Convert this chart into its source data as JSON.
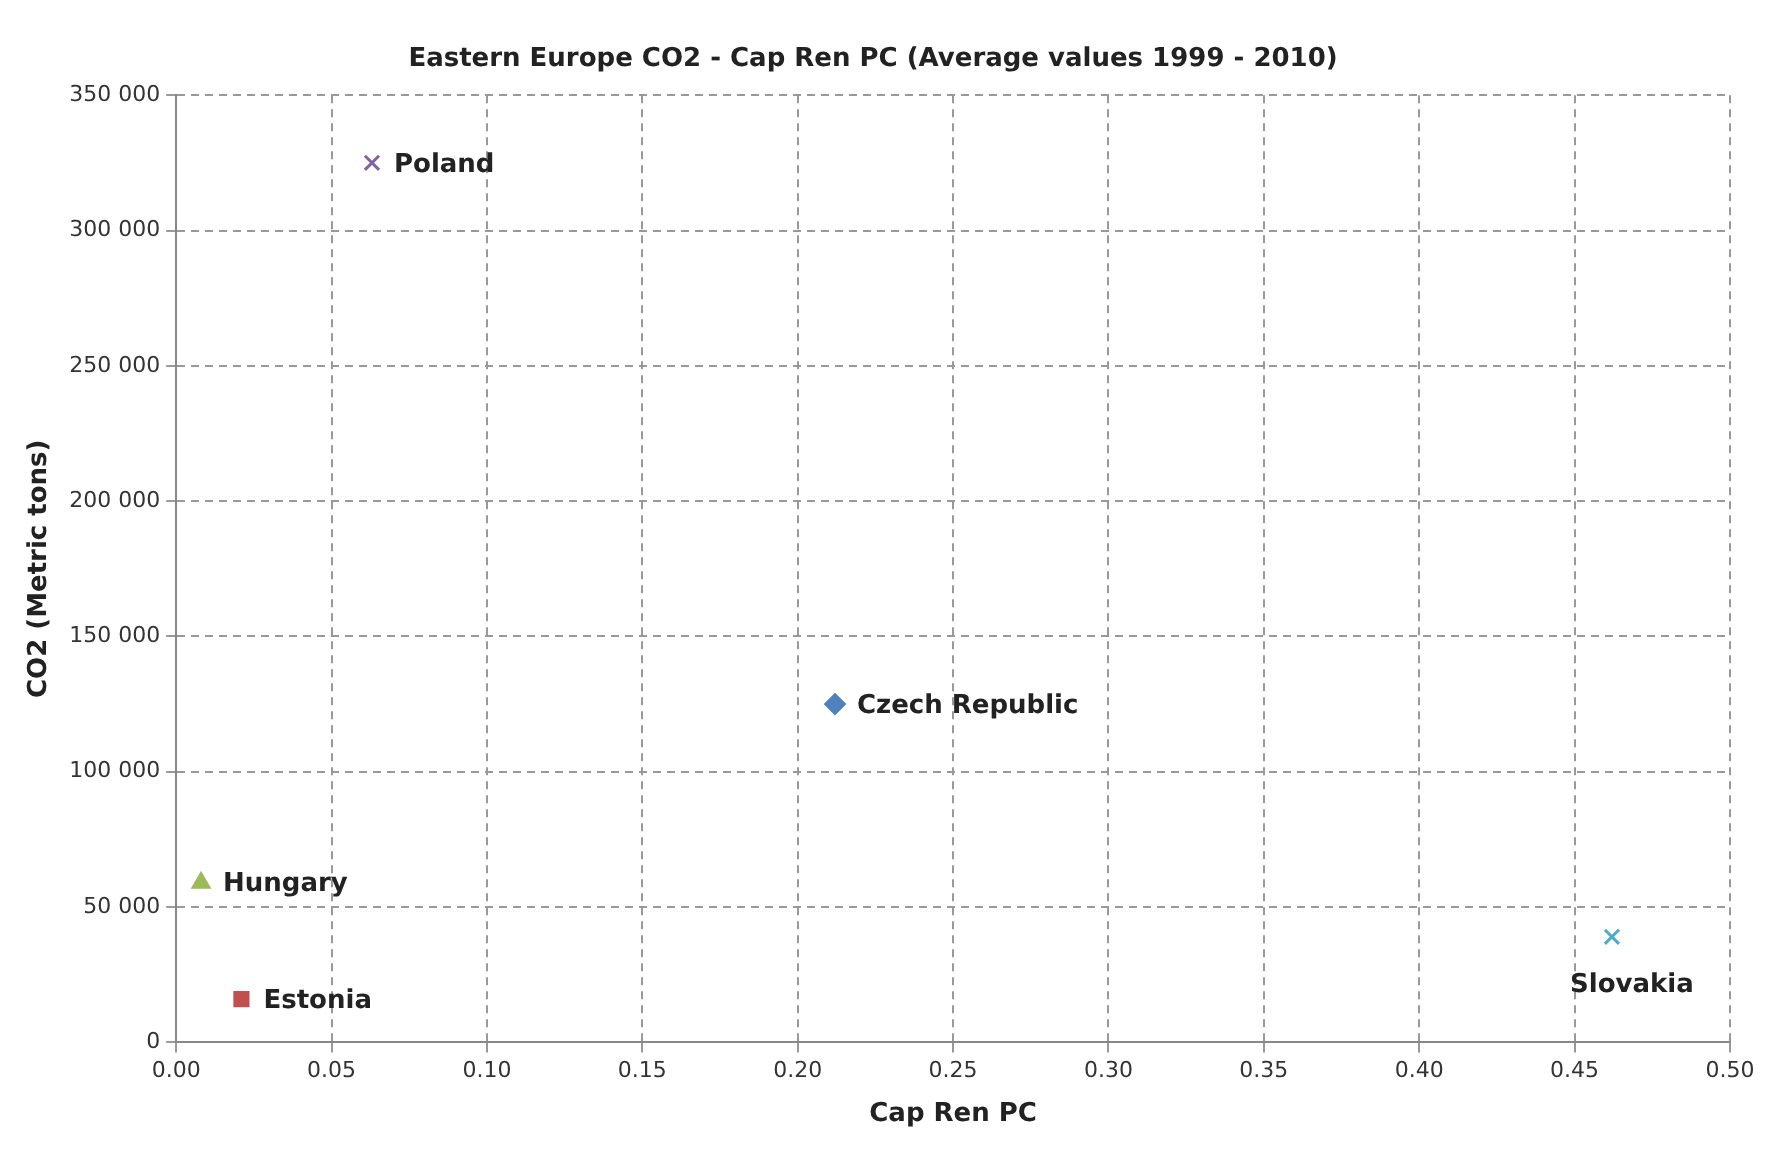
{
  "chart_data": {
    "type": "scatter",
    "title": "Eastern Europe CO2 - Cap Ren PC (Average values 1999 - 2010)",
    "xlabel": "Cap Ren PC",
    "ylabel": "CO2 (Metric tons)",
    "series": [
      {
        "name": "Poland",
        "color": "#8064a2",
        "marker": "cross",
        "x": [
          0.063
        ],
        "values": [
          325000
        ]
      },
      {
        "name": "Czech Republic",
        "color": "#4f81bd",
        "marker": "diamond",
        "x": [
          0.212
        ],
        "values": [
          125000
        ]
      },
      {
        "name": "Hungary",
        "color": "#9bbb59",
        "marker": "triangle",
        "x": [
          0.008
        ],
        "values": [
          59000
        ]
      },
      {
        "name": "Estonia",
        "color": "#c0504d",
        "marker": "square",
        "x": [
          0.021
        ],
        "values": [
          16000
        ]
      },
      {
        "name": "Slovakia",
        "color": "#4bacc6",
        "marker": "cross",
        "x": [
          0.462
        ],
        "values": [
          39000
        ]
      }
    ],
    "xlim": [
      0,
      0.5
    ],
    "ylim": [
      0,
      350000
    ],
    "xticks": [
      {
        "value": 0,
        "label": "0.00"
      },
      {
        "value": 0.05,
        "label": "0.05"
      },
      {
        "value": 0.1,
        "label": "0.10"
      },
      {
        "value": 0.15,
        "label": "0.15"
      },
      {
        "value": 0.2,
        "label": "0.20"
      },
      {
        "value": 0.25,
        "label": "0.25"
      },
      {
        "value": 0.3,
        "label": "0.30"
      },
      {
        "value": 0.35,
        "label": "0.35"
      },
      {
        "value": 0.4,
        "label": "0.40"
      },
      {
        "value": 0.45,
        "label": "0.45"
      },
      {
        "value": 0.5,
        "label": "0.50"
      }
    ],
    "yticks": [
      0,
      {
        "value": 50000,
        "label": "50 000"
      },
      {
        "value": 100000,
        "label": "100 000"
      },
      {
        "value": 150000,
        "label": "150 000"
      },
      {
        "value": 200000,
        "label": "200 000"
      },
      {
        "value": 250000,
        "label": "250 000"
      },
      {
        "value": 300000,
        "label": "300 000"
      },
      {
        "value": 350000,
        "label": "350 000"
      }
    ],
    "grid": true,
    "line_style": "dashed",
    "legend": false
  }
}
